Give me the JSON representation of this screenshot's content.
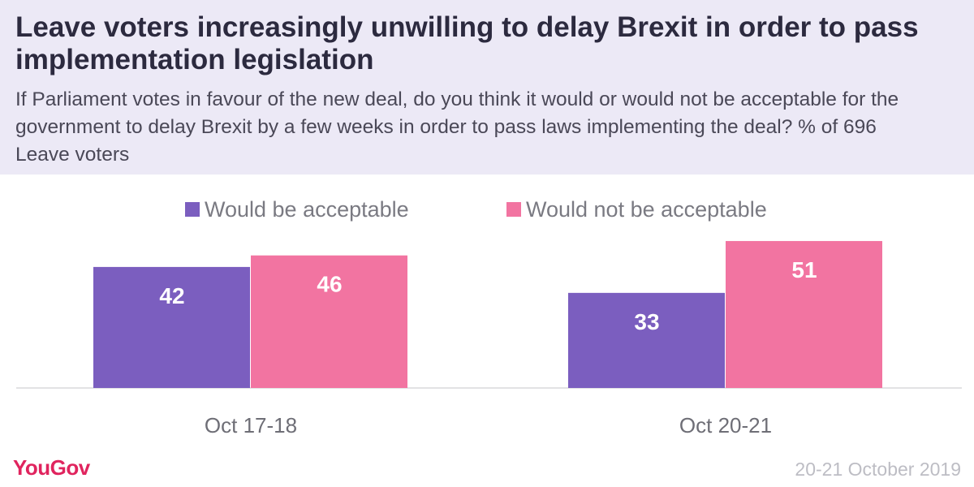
{
  "header": {
    "title": "Leave voters increasingly unwilling to delay Brexit in order to pass implementation legislation",
    "subtitle": "If Parliament votes in favour of the new deal, do you think it would or would not be acceptable for the government to delay Brexit by a few weeks in order to pass laws implementing the deal? % of 696 Leave voters"
  },
  "colors": {
    "acceptable": "#7b5ebf",
    "not_acceptable": "#f274a1",
    "header_bg": "#ece9f6",
    "brand": "#e0245e"
  },
  "chart_data": {
    "type": "bar",
    "categories": [
      "Oct 17-18",
      "Oct 20-21"
    ],
    "series": [
      {
        "name": "Would be acceptable",
        "values": [
          42,
          33
        ]
      },
      {
        "name": "Would not be acceptable",
        "values": [
          46,
          51
        ]
      }
    ],
    "ylim": [
      0,
      55
    ],
    "grid": false,
    "legend": "top"
  },
  "footer": {
    "brand": "YouGov",
    "date": "20-21 October 2019"
  }
}
